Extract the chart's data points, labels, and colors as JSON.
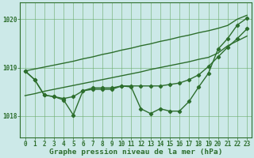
{
  "xlabel": "Graphe pression niveau de la mer (hPa)",
  "x_ticks": [
    0,
    1,
    2,
    3,
    4,
    5,
    6,
    7,
    8,
    9,
    10,
    11,
    12,
    13,
    14,
    15,
    16,
    17,
    18,
    19,
    20,
    21,
    22,
    23
  ],
  "ylim": [
    1017.55,
    1020.35
  ],
  "yticks": [
    1018,
    1019,
    1020
  ],
  "background_color": "#cce9e8",
  "grid_color": "#6aab6a",
  "line_color": "#2d6e2d",
  "line1": [
    1018.93,
    1018.75,
    1018.43,
    1018.4,
    1018.33,
    1018.02,
    1018.52,
    1018.55,
    1018.55,
    1018.55,
    1018.62,
    1018.6,
    1018.15,
    1018.05,
    1018.15,
    1018.1,
    1018.1,
    1018.3,
    1018.6,
    1018.88,
    1019.38,
    1019.6,
    1019.88,
    1020.02
  ],
  "line2": [
    1018.93,
    1018.75,
    1018.43,
    1018.4,
    1018.36,
    1018.4,
    1018.52,
    1018.58,
    1018.58,
    1018.58,
    1018.62,
    1018.62,
    1018.62,
    1018.62,
    1018.62,
    1018.65,
    1018.68,
    1018.75,
    1018.85,
    1019.02,
    1019.22,
    1019.42,
    1019.6,
    1019.8
  ],
  "line3": [
    1018.93,
    1018.97,
    1019.01,
    1019.05,
    1019.09,
    1019.13,
    1019.18,
    1019.22,
    1019.27,
    1019.31,
    1019.36,
    1019.4,
    1019.45,
    1019.49,
    1019.54,
    1019.58,
    1019.63,
    1019.67,
    1019.72,
    1019.76,
    1019.81,
    1019.87,
    1020.0,
    1020.08
  ],
  "line4": [
    1018.42,
    1018.46,
    1018.51,
    1018.55,
    1018.59,
    1018.63,
    1018.67,
    1018.71,
    1018.75,
    1018.79,
    1018.83,
    1018.87,
    1018.91,
    1018.96,
    1019.0,
    1019.04,
    1019.08,
    1019.12,
    1019.17,
    1019.21,
    1019.3,
    1019.45,
    1019.55,
    1019.65
  ],
  "marker": "D",
  "marker_size": 2.2,
  "line_width": 1.0,
  "tick_fontsize": 5.5,
  "label_fontsize": 6.8,
  "fig_width": 3.2,
  "fig_height": 2.0,
  "dpi": 100
}
